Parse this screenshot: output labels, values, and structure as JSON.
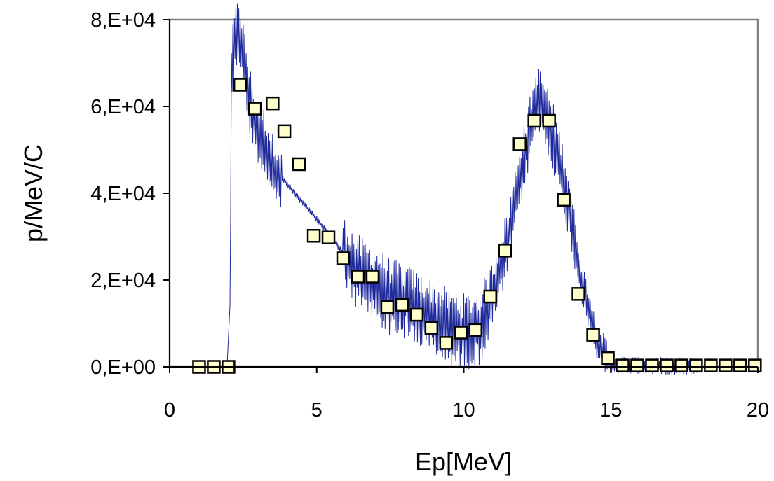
{
  "chart_data": {
    "type": "scatter",
    "title": "",
    "xlabel": "Ep[MeV]",
    "ylabel": "p/MeV/C",
    "xlim": [
      0,
      20
    ],
    "ylim": [
      0,
      80000
    ],
    "x_ticks": [
      {
        "value": 0,
        "label": "0"
      },
      {
        "value": 5,
        "label": "5"
      },
      {
        "value": 10,
        "label": "10"
      },
      {
        "value": 15,
        "label": "15"
      },
      {
        "value": 20,
        "label": "20"
      }
    ],
    "y_ticks": [
      {
        "value": 0,
        "label": "0,E+00"
      },
      {
        "value": 20000,
        "label": "2,E+04"
      },
      {
        "value": 40000,
        "label": "4,E+04"
      },
      {
        "value": 60000,
        "label": "6,E+04"
      },
      {
        "value": 80000,
        "label": "8,E+04"
      }
    ],
    "grid": false,
    "legend": "none",
    "colors": {
      "line": "#1f2a9c",
      "marker_fill": "#ffffcc",
      "marker_edge": "#000000",
      "plot_border": "#808080"
    },
    "series": [
      {
        "type": "line",
        "points": [
          [
            0,
            0
          ],
          [
            1,
            0
          ],
          [
            1.5,
            0
          ],
          [
            1.95,
            0
          ],
          [
            2.05,
            14000
          ],
          [
            2.1,
            68000
          ],
          [
            2.2,
            74000
          ],
          [
            2.35,
            78000
          ],
          [
            2.5,
            72000
          ],
          [
            2.7,
            62000
          ],
          [
            3,
            54000
          ],
          [
            3.2,
            52000
          ],
          [
            3.5,
            46000
          ],
          [
            4,
            42000
          ],
          [
            4.5,
            38000
          ],
          [
            5,
            34000
          ],
          [
            5.5,
            30000
          ],
          [
            6,
            25000
          ],
          [
            6.5,
            21000
          ],
          [
            7,
            19000
          ],
          [
            7.5,
            16000
          ],
          [
            8,
            15000
          ],
          [
            8.5,
            13000
          ],
          [
            9,
            11000
          ],
          [
            9.5,
            9000
          ],
          [
            10,
            8000
          ],
          [
            10.5,
            9000
          ],
          [
            10.8,
            13000
          ],
          [
            11,
            17000
          ],
          [
            11.5,
            29000
          ],
          [
            12,
            47000
          ],
          [
            12.5,
            62000
          ],
          [
            12.8,
            58000
          ],
          [
            13,
            54000
          ],
          [
            13.5,
            40000
          ],
          [
            14,
            20000
          ],
          [
            14.5,
            7000
          ],
          [
            14.8,
            2000
          ],
          [
            15,
            500
          ],
          [
            16,
            300
          ],
          [
            17,
            200
          ],
          [
            18,
            100
          ],
          [
            19,
            0
          ],
          [
            20,
            0
          ]
        ],
        "noise": [
          [
            2.05,
            3.8,
            8000
          ],
          [
            3.8,
            5.9,
            800
          ],
          [
            5.9,
            10.9,
            9000
          ],
          [
            10.9,
            13.8,
            8000
          ],
          [
            13.8,
            14.9,
            5000
          ],
          [
            14.9,
            18,
            2000
          ]
        ]
      },
      {
        "type": "scatter",
        "x": [
          1,
          1.5,
          2,
          2.4,
          2.9,
          3.5,
          3.9,
          4.4,
          4.9,
          5.4,
          5.9,
          6.4,
          6.9,
          7.4,
          7.9,
          8.4,
          8.9,
          9.4,
          9.9,
          10.4,
          10.9,
          11.4,
          11.9,
          12.4,
          12.9,
          13.4,
          13.9,
          14.4,
          14.9,
          15.4,
          15.9,
          16.4,
          16.9,
          17.4,
          17.9,
          18.4,
          18.9,
          19.4,
          19.9
        ],
        "y": [
          0,
          0,
          0,
          65000,
          59500,
          60700,
          54300,
          46700,
          30200,
          29800,
          25000,
          20800,
          20800,
          13800,
          14300,
          12000,
          9000,
          5500,
          7900,
          8500,
          16200,
          26800,
          51300,
          56700,
          56700,
          38500,
          16800,
          7400,
          2000,
          300,
          300,
          300,
          300,
          300,
          300,
          300,
          300,
          300,
          300
        ]
      }
    ]
  }
}
